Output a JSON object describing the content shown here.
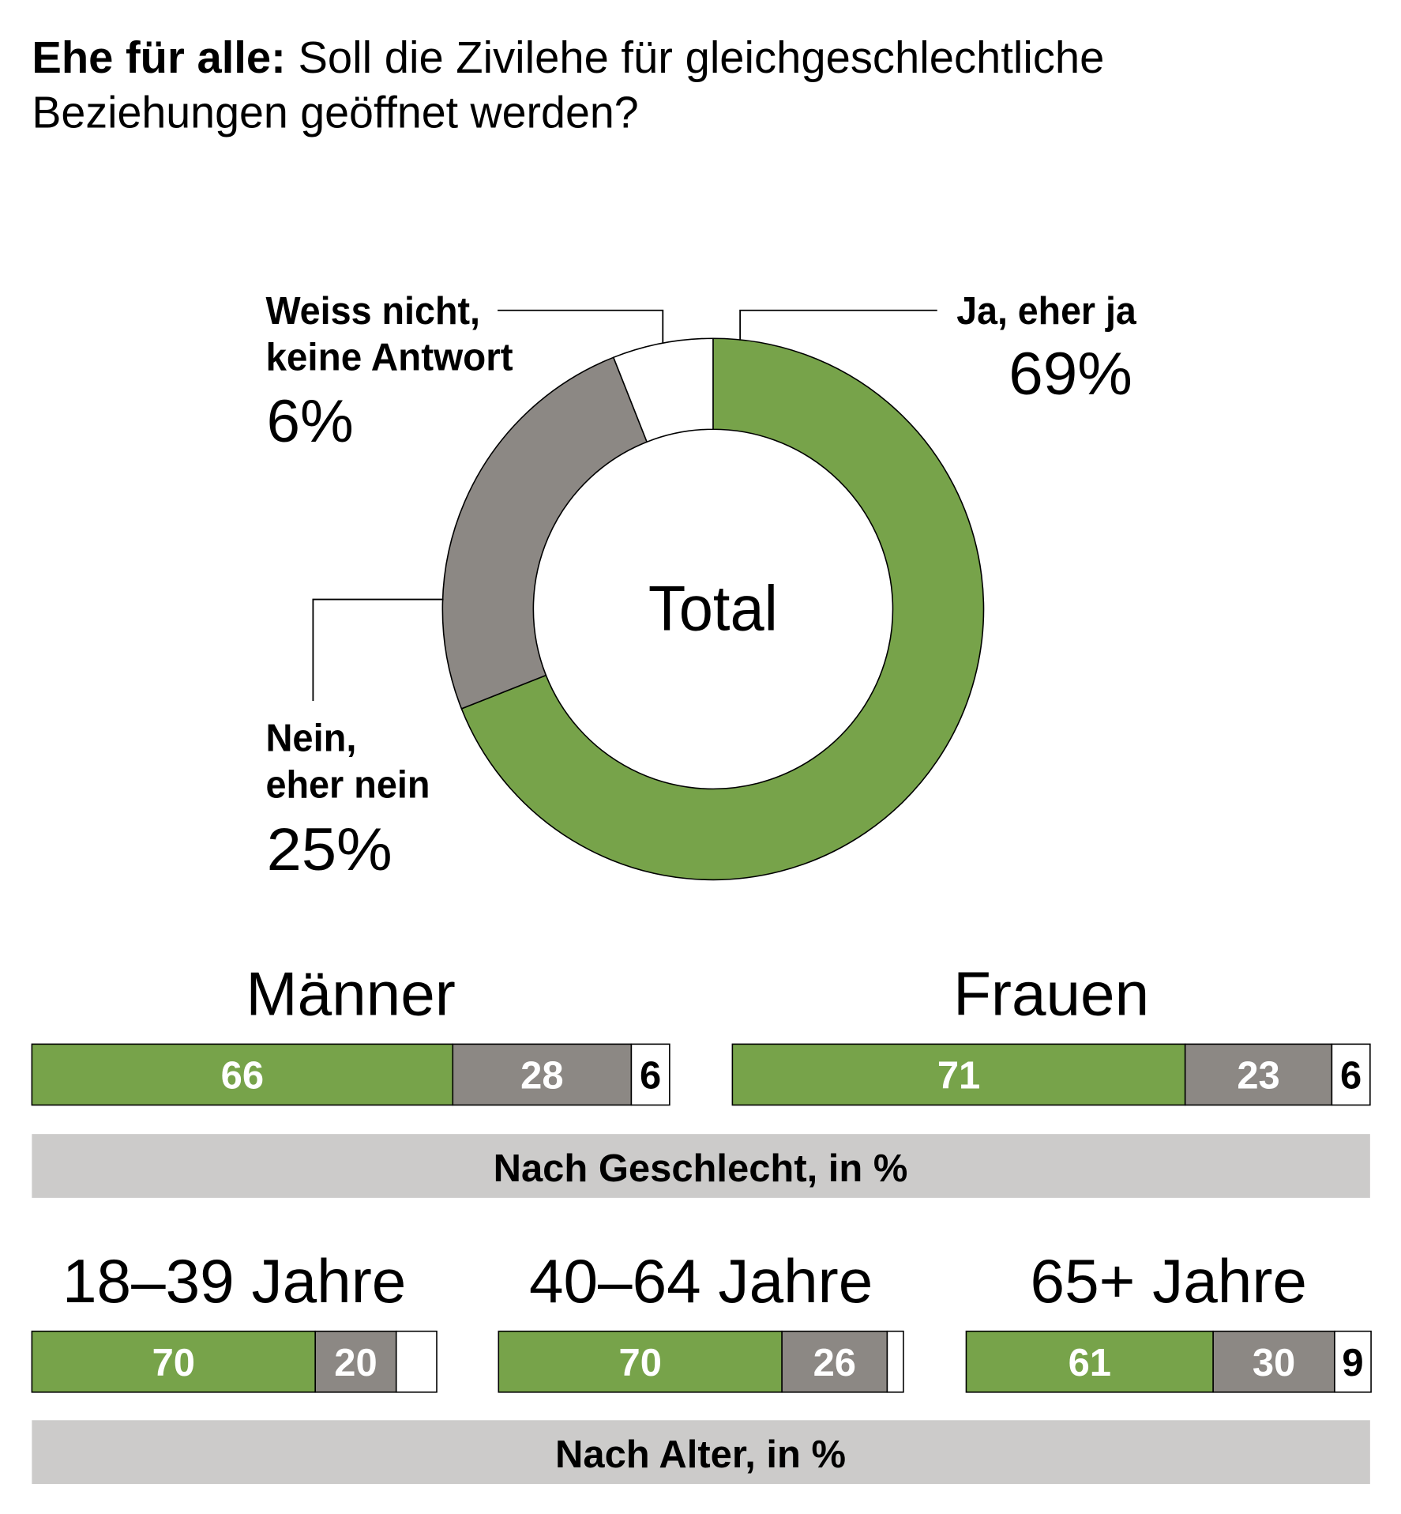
{
  "title": {
    "bold": "Ehe für alle:",
    "line1": " Soll die Zivilehe für gleichgeschlechtliche",
    "line2": "Beziehungen geöffnet werden?"
  },
  "colors": {
    "ja": "#77a34a",
    "nein": "#8c8884",
    "weiss": "#ffffff",
    "band": "#cccbca",
    "outline": "#000000"
  },
  "chart_data": [
    {
      "type": "pie",
      "variant": "donut",
      "center_label": "Total",
      "slices": [
        {
          "name_line1": "Ja, eher ja",
          "name_line2": "",
          "value": 69,
          "label": "69%",
          "color": "#77a34a"
        },
        {
          "name_line1": "Nein,",
          "name_line2": "eher nein",
          "value": 25,
          "label": "25%",
          "color": "#8c8884"
        },
        {
          "name_line1": "Weiss nicht,",
          "name_line2": "keine Antwort",
          "value": 6,
          "label": "6%",
          "color": "#ffffff"
        }
      ]
    },
    {
      "type": "bar",
      "orientation": "horizontal-stacked",
      "title": "Nach Geschlecht, in %",
      "groups": [
        {
          "name": "Männer",
          "values": [
            66,
            28,
            6
          ],
          "labels": [
            "66",
            "28",
            "6"
          ]
        },
        {
          "name": "Frauen",
          "values": [
            71,
            23,
            6
          ],
          "labels": [
            "71",
            "23",
            "6"
          ]
        }
      ]
    },
    {
      "type": "bar",
      "orientation": "horizontal-stacked",
      "title": "Nach Alter, in %",
      "groups": [
        {
          "name": "18–39 Jahre",
          "values": [
            70,
            20,
            10
          ],
          "labels": [
            "70",
            "20",
            ""
          ]
        },
        {
          "name": "40–64 Jahre",
          "values": [
            70,
            26,
            4
          ],
          "labels": [
            "70",
            "26",
            ""
          ]
        },
        {
          "name": "65+ Jahre",
          "values": [
            61,
            30,
            9
          ],
          "labels": [
            "61",
            "30",
            "9"
          ]
        }
      ]
    }
  ]
}
